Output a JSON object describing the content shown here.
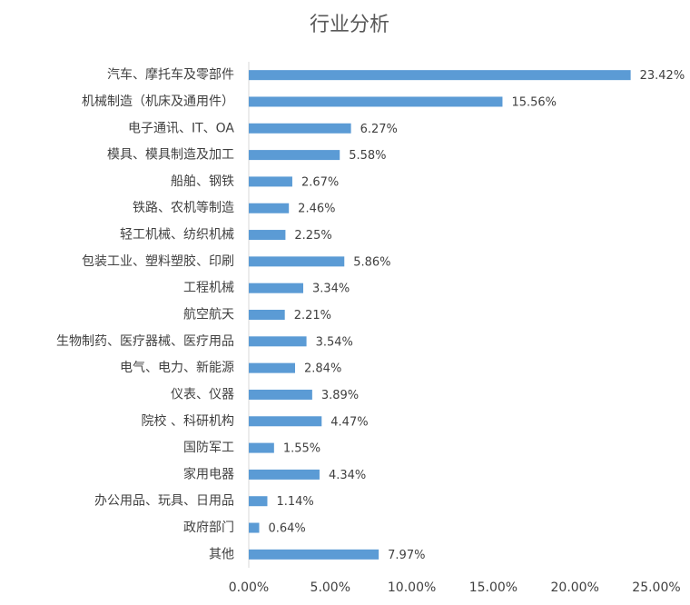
{
  "chart_data": {
    "type": "hbar",
    "title": "行业分析",
    "categories": [
      "汽车、摩托车及零部件",
      "机械制造（机床及通用件）",
      "电子通讯、IT、OA",
      "模具、模具制造及加工",
      "船舶、钢铁",
      "铁路、农机等制造",
      "轻工机械、纺织机械",
      "包装工业、塑料塑胶、印刷",
      "工程机械",
      "航空航天",
      "生物制药、医疗器械、医疗用品",
      "电气、电力、新能源",
      "仪表、仪器",
      "院校 、科研机构",
      "国防军工",
      "家用电器",
      "办公用品、玩具、日用品",
      "政府部门",
      "其他"
    ],
    "values": [
      23.42,
      15.56,
      6.27,
      5.58,
      2.67,
      2.46,
      2.25,
      5.86,
      3.34,
      2.21,
      3.54,
      2.84,
      3.89,
      4.47,
      1.55,
      4.34,
      1.14,
      0.64,
      7.97
    ],
    "value_labels": [
      "23.42%",
      "15.56%",
      "6.27%",
      "5.58%",
      "2.67%",
      "2.46%",
      "2.25%",
      "5.86%",
      "3.34%",
      "2.21%",
      "3.54%",
      "2.84%",
      "3.89%",
      "4.47%",
      "1.55%",
      "4.34%",
      "1.14%",
      "0.64%",
      "7.97%"
    ],
    "color": "#5b9bd5",
    "xlim": [
      0,
      25
    ],
    "xticks": [
      {
        "value": 0,
        "label": "0.00%"
      },
      {
        "value": 5,
        "label": "5.00%"
      },
      {
        "value": 10,
        "label": "10.00%"
      },
      {
        "value": 15,
        "label": "15.00%"
      },
      {
        "value": 20,
        "label": "20.00%"
      },
      {
        "value": 25,
        "label": "25.00%"
      }
    ],
    "grid": false
  }
}
